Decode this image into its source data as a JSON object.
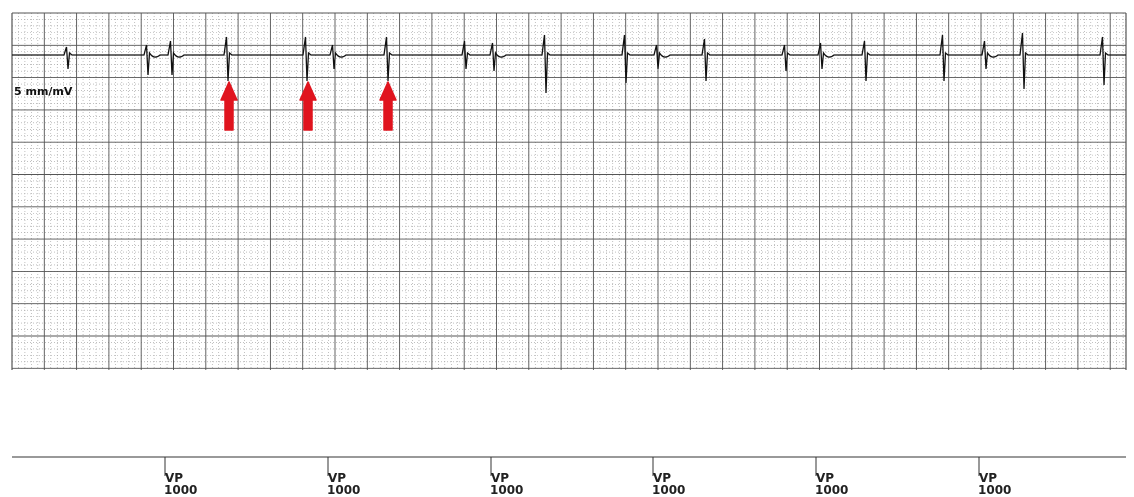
{
  "strip": {
    "gain_label": "5 mm/mV",
    "colors": {
      "grid_major": "#555555",
      "grid_minor": "#9a9a9a",
      "trace": "#111111",
      "arrow": "#e0141e",
      "marker_axis": "#333333"
    }
  },
  "markers": {
    "items": [
      {
        "code": "VP",
        "interval": "1000"
      },
      {
        "code": "VP",
        "interval": "1000"
      },
      {
        "code": "VP",
        "interval": "1000"
      },
      {
        "code": "VP",
        "interval": "1000"
      },
      {
        "code": "VP",
        "interval": "1000"
      },
      {
        "code": "VP",
        "interval": "1000"
      }
    ]
  },
  "annotations": {
    "arrow_icon": "red-up-arrow-icon"
  }
}
